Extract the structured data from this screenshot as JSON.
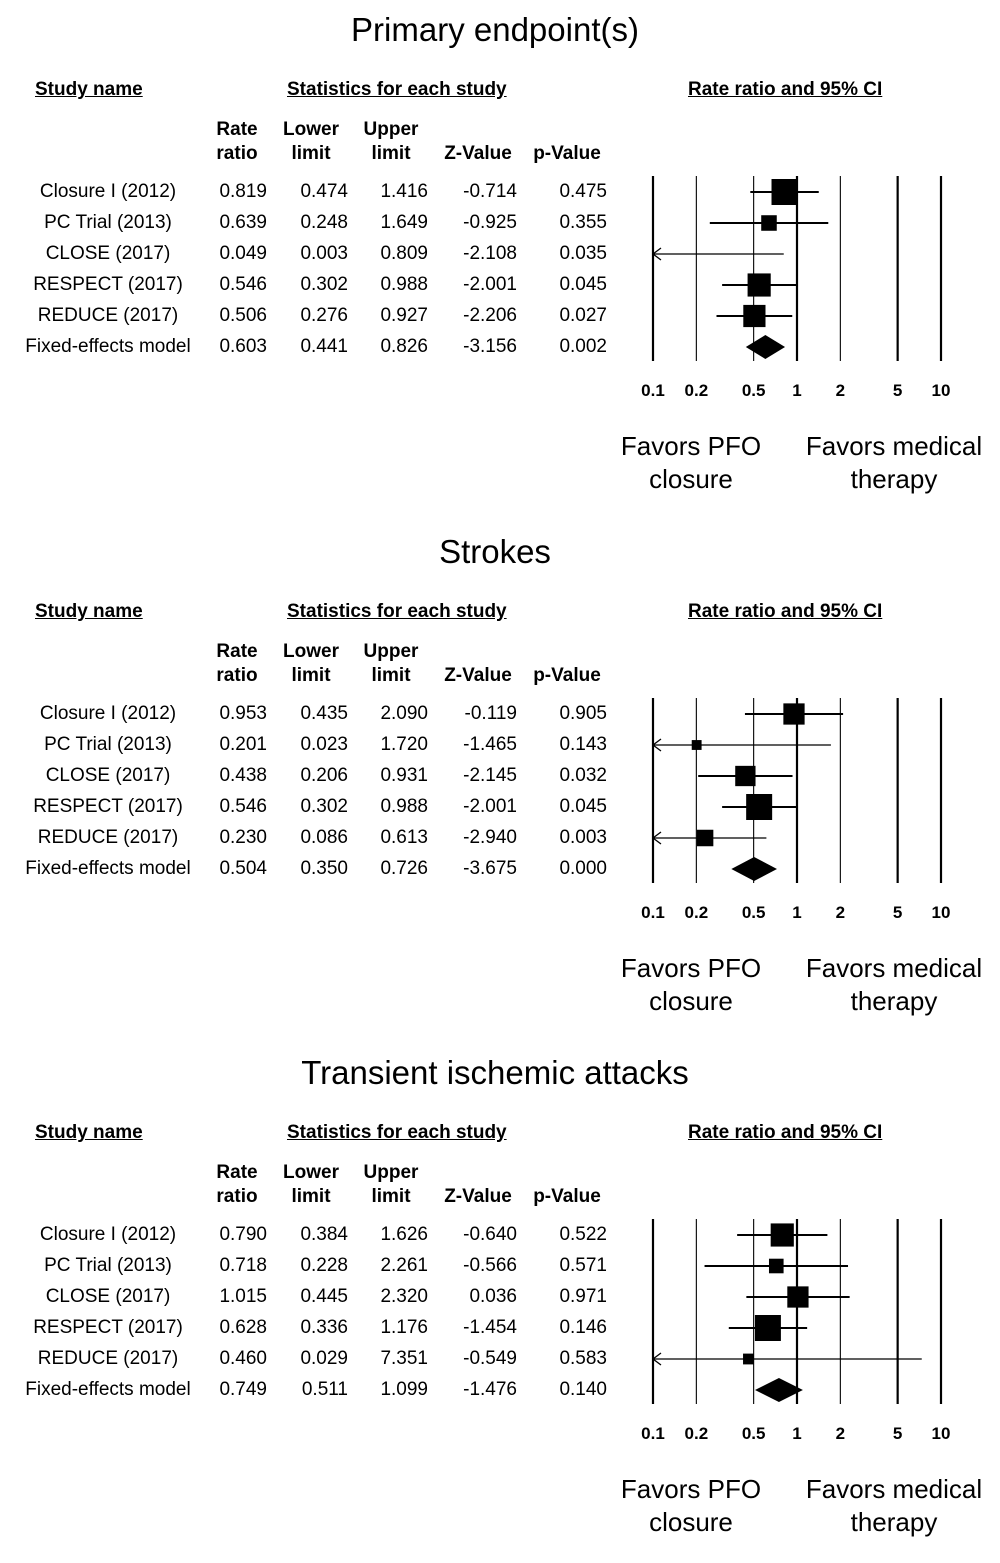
{
  "headers": {
    "study_name": "Study name",
    "stats": "Statistics for each study",
    "rate_ci": "Rate ratio and 95% CI",
    "rate_ratio": [
      "Rate",
      "ratio"
    ],
    "lower_limit": [
      "Lower",
      "limit"
    ],
    "upper_limit": [
      "Upper",
      "limit"
    ],
    "z_value": "Z-Value",
    "p_value": "p-Value"
  },
  "favors": {
    "left": [
      "Favors PFO",
      "closure"
    ],
    "right": [
      "Favors medical",
      "therapy"
    ]
  },
  "colors": {
    "ink": "#000000",
    "background": "#ffffff"
  },
  "chart_data": [
    {
      "type": "forest",
      "title": "Primary endpoint(s)",
      "x_scale": "log",
      "xlim": [
        0.1,
        10
      ],
      "ticks": [
        0.1,
        0.2,
        0.5,
        1,
        2,
        5,
        10
      ],
      "tick_labels": [
        "0.1",
        "0.2",
        "0.5",
        "1",
        "2",
        "5",
        "10"
      ],
      "rows": [
        {
          "study": "Closure I (2012)",
          "rr": "0.819",
          "lower": "0.474",
          "upper": "1.416",
          "z": "-0.714",
          "p": "0.475",
          "weight": 1.0
        },
        {
          "study": "PC Trial (2013)",
          "rr": "0.639",
          "lower": "0.248",
          "upper": "1.649",
          "z": "-0.925",
          "p": "0.355",
          "weight": 0.45
        },
        {
          "study": "CLOSE (2017)",
          "rr": "0.049",
          "lower": "0.003",
          "upper": "0.809",
          "z": "-2.108",
          "p": "0.035",
          "weight": 0.0
        },
        {
          "study": "RESPECT (2017)",
          "rr": "0.546",
          "lower": "0.302",
          "upper": "0.988",
          "z": "-2.001",
          "p": "0.045",
          "weight": 0.85
        },
        {
          "study": "REDUCE (2017)",
          "rr": "0.506",
          "lower": "0.276",
          "upper": "0.927",
          "z": "-2.206",
          "p": "0.027",
          "weight": 0.8
        }
      ],
      "summary": {
        "study": "Fixed-effects model",
        "rr": "0.603",
        "lower": "0.441",
        "upper": "0.826",
        "z": "-3.156",
        "p": "0.002"
      }
    },
    {
      "type": "forest",
      "title": "Strokes",
      "x_scale": "log",
      "xlim": [
        0.1,
        10
      ],
      "ticks": [
        0.1,
        0.2,
        0.5,
        1,
        2,
        5,
        10
      ],
      "tick_labels": [
        "0.1",
        "0.2",
        "0.5",
        "1",
        "2",
        "5",
        "10"
      ],
      "rows": [
        {
          "study": "Closure I (2012)",
          "rr": "0.953",
          "lower": "0.435",
          "upper": "2.090",
          "z": "-0.119",
          "p": "0.905",
          "weight": 0.75
        },
        {
          "study": "PC Trial (2013)",
          "rr": "0.201",
          "lower": "0.023",
          "upper": "1.720",
          "z": "-1.465",
          "p": "0.143",
          "weight": 0.15
        },
        {
          "study": "CLOSE (2017)",
          "rr": "0.438",
          "lower": "0.206",
          "upper": "0.931",
          "z": "-2.145",
          "p": "0.032",
          "weight": 0.7
        },
        {
          "study": "RESPECT (2017)",
          "rr": "0.546",
          "lower": "0.302",
          "upper": "0.988",
          "z": "-2.001",
          "p": "0.045",
          "weight": 1.0
        },
        {
          "study": "REDUCE (2017)",
          "rr": "0.230",
          "lower": "0.086",
          "upper": "0.613",
          "z": "-2.940",
          "p": "0.003",
          "weight": 0.5
        }
      ],
      "summary": {
        "study": "Fixed-effects model",
        "rr": "0.504",
        "lower": "0.350",
        "upper": "0.726",
        "z": "-3.675",
        "p": "0.000"
      }
    },
    {
      "type": "forest",
      "title": "Transient ischemic attacks",
      "x_scale": "log",
      "xlim": [
        0.1,
        10
      ],
      "ticks": [
        0.1,
        0.2,
        0.5,
        1,
        2,
        5,
        10
      ],
      "tick_labels": [
        "0.1",
        "0.2",
        "0.5",
        "1",
        "2",
        "5",
        "10"
      ],
      "rows": [
        {
          "study": "Closure I (2012)",
          "rr": "0.790",
          "lower": "0.384",
          "upper": "1.626",
          "z": "-0.640",
          "p": "0.522",
          "weight": 0.85
        },
        {
          "study": "PC Trial (2013)",
          "rr": "0.718",
          "lower": "0.228",
          "upper": "2.261",
          "z": "-0.566",
          "p": "0.571",
          "weight": 0.4
        },
        {
          "study": "CLOSE (2017)",
          "rr": "1.015",
          "lower": "0.445",
          "upper": "2.320",
          "z": "0.036",
          "p": "0.971",
          "weight": 0.75
        },
        {
          "study": "RESPECT (2017)",
          "rr": "0.628",
          "lower": "0.336",
          "upper": "1.176",
          "z": "-1.454",
          "p": "0.146",
          "weight": 1.0
        },
        {
          "study": "REDUCE (2017)",
          "rr": "0.460",
          "lower": "0.029",
          "upper": "7.351",
          "z": "-0.549",
          "p": "0.583",
          "weight": 0.2
        }
      ],
      "summary": {
        "study": "Fixed-effects model",
        "rr": "0.749",
        "lower": "0.511",
        "upper": "1.099",
        "z": "-1.476",
        "p": "0.140"
      }
    }
  ]
}
